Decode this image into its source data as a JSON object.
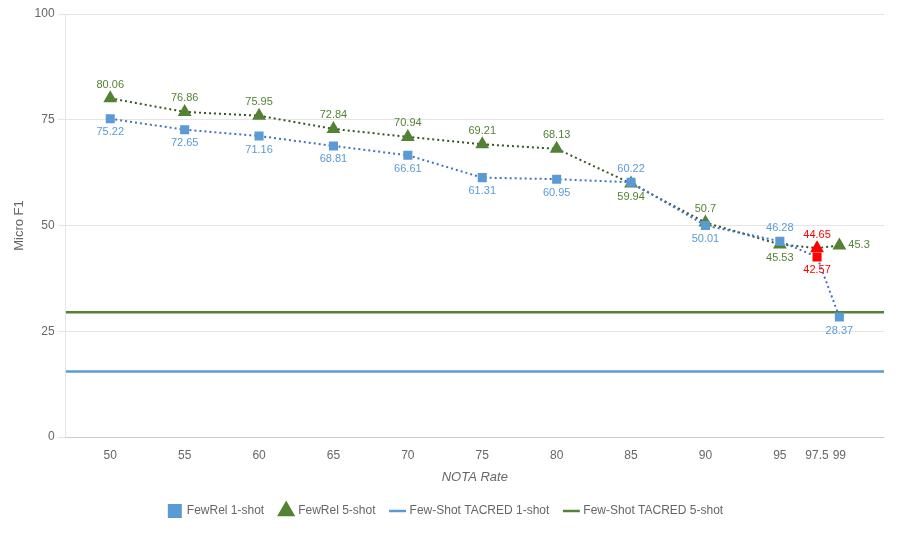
{
  "chart_data": {
    "type": "line",
    "x_label": "NOTA Rate",
    "y_label": "Micro F1",
    "x": [
      50,
      55,
      60,
      65,
      70,
      75,
      80,
      85,
      90,
      95,
      97.5,
      99
    ],
    "xlim": [
      47,
      102
    ],
    "xticks": [
      50,
      55,
      60,
      65,
      70,
      75,
      80,
      85,
      90,
      95,
      97.5,
      99
    ],
    "ylim": [
      0,
      100
    ],
    "yticks": [
      0,
      25,
      50,
      75,
      100
    ],
    "grid": "y",
    "legend": "bottom",
    "data_labels": true,
    "series": [
      {
        "name": "FewRel 1-shot",
        "color": "#4472c4",
        "colors": [
          "#5b9bd5",
          "#5b9bd5",
          "#5b9bd5",
          "#5b9bd5",
          "#5b9bd5",
          "#5b9bd5",
          "#5b9bd5",
          "#5b9bd5",
          "#5b9bd5",
          "#5b9bd5",
          "#ff0000",
          "#5b9bd5"
        ],
        "marker": "square",
        "line_style": "dotted",
        "values": [
          75.22,
          72.65,
          71.16,
          68.81,
          66.61,
          61.31,
          60.95,
          60.22,
          50.01,
          46.28,
          42.57,
          28.37
        ]
      },
      {
        "name": "FewRel 5-shot",
        "color": "#375623",
        "colors": [
          "#548235",
          "#548235",
          "#548235",
          "#548235",
          "#548235",
          "#548235",
          "#548235",
          "#548235",
          "#548235",
          "#548235",
          "#ff0000",
          "#548235"
        ],
        "marker": "triangle",
        "line_style": "dotted",
        "values": [
          80.06,
          76.86,
          75.95,
          72.84,
          70.94,
          69.21,
          68.13,
          59.94,
          50.7,
          45.53,
          44.65,
          45.3
        ]
      },
      {
        "name": "Few-Shot TACRED 1-shot",
        "type": "hline",
        "color": "#5b9bd5",
        "line_style": "solid",
        "value": 15.5
      },
      {
        "name": "Few-Shot TACRED 5-shot",
        "type": "hline",
        "color": "#548235",
        "line_style": "solid",
        "value": 29.5
      }
    ]
  }
}
